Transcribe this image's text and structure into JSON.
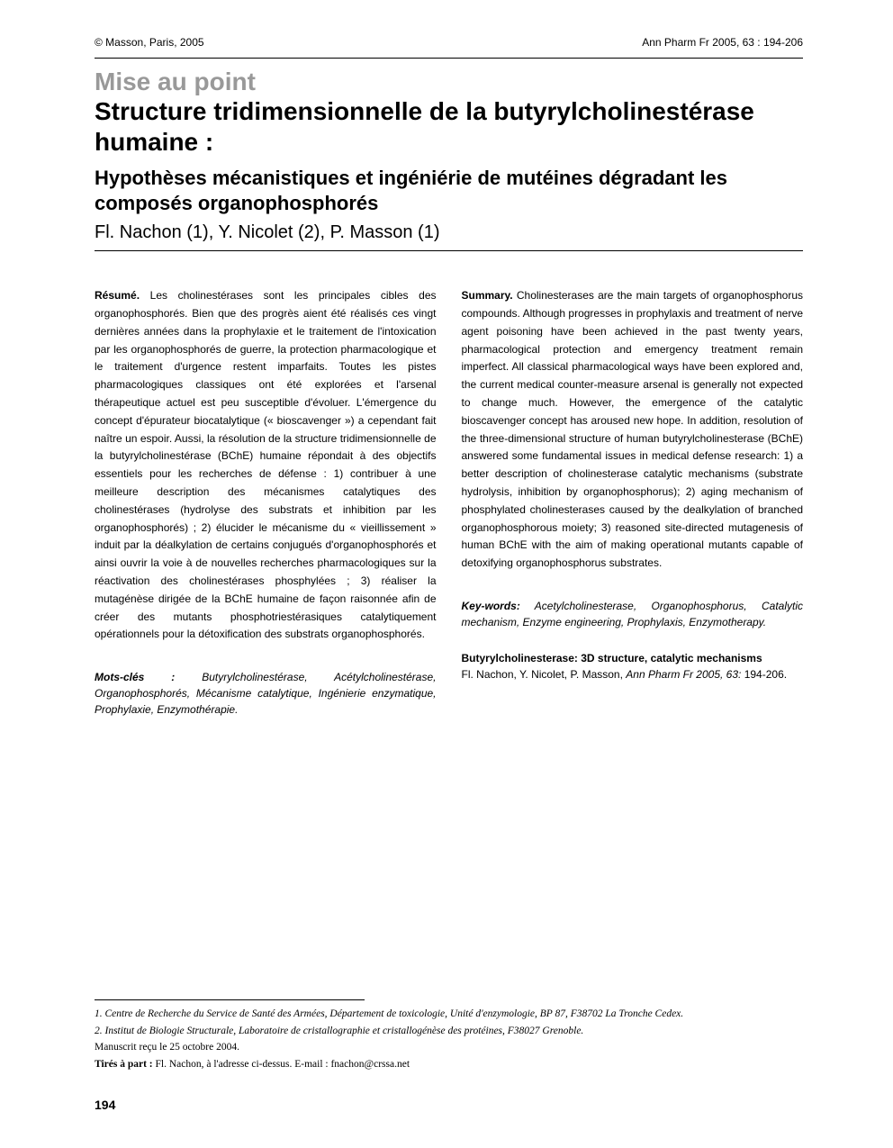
{
  "header": {
    "copyright": "© Masson, Paris, 2005",
    "journal_ref": "Ann Pharm Fr 2005, 63 : 194-206"
  },
  "overline": "Mise au point",
  "title": "Structure tridimensionnelle de la butyrylcholinestérase humaine :",
  "subtitle": "Hypothèses mécanistiques et ingéniérie de mutéines dégradant les composés organophosphorés",
  "authors": "Fl. Nachon (1), Y. Nicolet (2), P. Masson (1)",
  "resume": {
    "label": "Résumé.",
    "body": "Les cholinestérases sont les principales cibles des organophosphorés. Bien que des progrès aient été réalisés ces vingt dernières années dans la prophylaxie et le traitement de l'intoxication par les organophosphorés de guerre, la protection pharmacologique et le traitement d'urgence restent imparfaits. Toutes les pistes pharmacologiques classiques ont été explorées et l'arsenal thérapeutique actuel est peu susceptible d'évoluer. L'émergence du concept d'épurateur biocatalytique (« bioscavenger ») a cependant fait naître un espoir. Aussi, la résolution de la structure tridimensionnelle de la butyrylcholinestérase (BChE) humaine répondait à des objectifs essentiels pour les recherches de défense : 1) contribuer à une meilleure description des mécanismes catalytiques des cholinestérases (hydrolyse des substrats et inhibition par les organophosphorés) ; 2) élucider le mécanisme du « vieillissement » induit par la déalkylation de certains conjugués d'organophosphorés et ainsi ouvrir la voie à de nouvelles recherches pharmacologiques sur la réactivation des cholinestérases phosphylées ; 3) réaliser la mutagénèse dirigée de la BChE humaine de façon raisonnée afin de créer des mutants phosphotriestérasiques catalytiquement opérationnels pour la détoxification des substrats organophosphorés."
  },
  "motscles": {
    "label": "Mots-clés :",
    "body": "Butyrylcholinestérase, Acétylcholinestérase, Organophosphorés, Mécanisme catalytique, Ingénierie enzymatique, Prophylaxie, Enzymothérapie."
  },
  "summary": {
    "label": "Summary.",
    "body": "Cholinesterases are the main targets of organophosphorus compounds. Although progresses in prophylaxis and treatment of nerve agent poisoning have been achieved in the past twenty years, pharmacological protection and emergency treatment remain imperfect. All classical pharmacological ways have been explored and, the current medical counter-measure arsenal is generally not expected to change much. However, the emergence of the catalytic bioscavenger concept has aroused new hope. In addition, resolution of the three-dimensional structure of human butyrylcholinesterase (BChE) answered some fundamental issues in medical defense research: 1) a better description of cholinesterase catalytic mechanisms (substrate hydrolysis, inhibition by organophosphorus); 2) aging mechanism of phosphylated cholinesterases caused by the dealkylation of branched organophosphorous moiety; 3) reasoned site-directed mutagenesis of human BChE with the aim of making operational mutants capable of detoxifying organophosphorus substrates."
  },
  "keywords": {
    "label": "Key-words:",
    "body": "Acetylcholinesterase, Organophosphorus, Catalytic mechanism, Enzyme engineering, Prophylaxis, Enzymotherapy."
  },
  "citation": {
    "title": "Butyrylcholinesterase: 3D structure, catalytic mechanisms",
    "authors": "Fl. Nachon, Y. Nicolet, P. Masson,",
    "journal": "Ann Pharm Fr 2005, 63:",
    "pages": "194-206."
  },
  "affiliations": {
    "a1": "1. Centre de Recherche du Service de Santé des Armées, Département de toxicologie, Unité d'enzymologie, BP 87, F38702 La Tronche Cedex.",
    "a2": "2. Institut de Biologie Structurale, Laboratoire de cristallographie et cristallogénèse des protéines, F38027 Grenoble."
  },
  "manuscript": "Manuscrit reçu le 25 octobre 2004.",
  "reprints": {
    "label": "Tirés à part :",
    "body": "Fl. Nachon, à l'adresse ci-dessus. E-mail :  fnachon@crssa.net"
  },
  "page_number": "194"
}
